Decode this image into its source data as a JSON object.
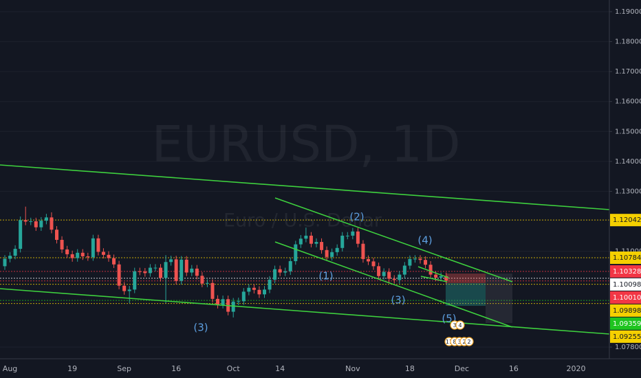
{
  "chart_data": {
    "type": "candlestick",
    "title": "EURUSD, 1D",
    "subtitle": "Euro / U.S. Dollar",
    "categories": [
      null,
      "Aug",
      null,
      null,
      null,
      null,
      null,
      null,
      null,
      null,
      null,
      null,
      null,
      "19",
      null,
      null,
      null,
      null,
      null,
      null,
      null,
      null,
      null,
      "Sep",
      null,
      null,
      null,
      null,
      null,
      null,
      null,
      null,
      null,
      "16",
      null,
      null,
      null,
      null,
      null,
      null,
      null,
      null,
      null,
      null,
      "Oct",
      null,
      null,
      null,
      null,
      null,
      null,
      null,
      null,
      "14",
      null,
      null,
      null,
      null,
      null,
      null,
      null,
      null,
      null,
      null,
      null,
      null,
      null,
      "Nov",
      null,
      null,
      null,
      null,
      null,
      null,
      null,
      null,
      null,
      null,
      "18",
      null,
      null,
      null,
      null,
      null,
      null,
      null,
      null,
      null,
      "Dec",
      null,
      null,
      null,
      null,
      null,
      null,
      null,
      null,
      null,
      "16",
      null,
      null,
      null,
      null,
      null,
      null,
      null,
      null,
      null,
      null,
      null,
      "2020",
      null,
      null,
      null,
      null,
      null,
      null
    ],
    "open": [
      1.105,
      1.1075,
      1.1085,
      1.1108,
      1.1204,
      1.1199,
      1.12,
      1.118,
      1.1202,
      1.1213,
      1.1172,
      1.1138,
      1.1106,
      1.109,
      1.1077,
      1.1095,
      1.1083,
      1.108,
      1.1143,
      1.1098,
      1.1088,
      1.1077,
      1.1056,
      1.0985,
      1.0967,
      1.0972,
      1.1033,
      1.1032,
      1.1027,
      1.1045,
      1.1045,
      1.1011,
      1.1064,
      1.1073,
      1.1001,
      1.1072,
      1.1029,
      1.1042,
      1.1018,
      1.0992,
      1.0994,
      1.0941,
      1.0921,
      1.094,
      1.0898,
      1.0932,
      1.0933,
      1.0965,
      1.0978,
      1.0971,
      1.0956,
      1.0972,
      1.1005,
      1.104,
      1.1029,
      1.1033,
      1.1067,
      1.1123,
      1.1142,
      1.1152,
      1.1125,
      1.1131,
      1.1104,
      1.1081,
      1.1097,
      1.1111,
      1.1152,
      1.1152,
      1.1166,
      1.1125,
      1.1074,
      1.1066,
      1.105,
      1.1017,
      1.1031,
      1.1008,
      1.1004,
      1.1022,
      1.1052,
      1.1074,
      1.1075,
      1.1071,
      1.1055,
      1.1022,
      1.1012,
      1.1017,
      null,
      null,
      null,
      null,
      null,
      null,
      null,
      null,
      null,
      null,
      null,
      null,
      null,
      null,
      null,
      null,
      null,
      null,
      null,
      null,
      null,
      null,
      null,
      null,
      null,
      null,
      null,
      null,
      null,
      null,
      null
    ],
    "high": [
      1.1087,
      1.1097,
      1.112,
      1.1216,
      1.1249,
      1.1212,
      1.1212,
      1.1214,
      1.1225,
      1.123,
      1.1184,
      1.115,
      1.1118,
      1.1102,
      1.1107,
      1.1107,
      1.1095,
      1.1155,
      1.1155,
      1.111,
      1.11,
      1.1089,
      1.1068,
      1.0997,
      1.0984,
      1.1045,
      1.1045,
      1.1044,
      1.1057,
      1.1057,
      1.1057,
      1.1087,
      1.1085,
      1.1085,
      1.1084,
      1.1084,
      1.1054,
      1.1054,
      1.103,
      1.1006,
      1.1006,
      1.0953,
      1.0952,
      1.0952,
      1.0944,
      1.0945,
      1.0977,
      1.099,
      1.099,
      1.0983,
      1.0984,
      1.1017,
      1.1052,
      1.1052,
      1.1045,
      1.1079,
      1.1135,
      1.1154,
      1.1179,
      1.1164,
      1.1143,
      1.1143,
      1.1116,
      1.1109,
      1.1123,
      1.1164,
      1.1164,
      1.1178,
      1.1178,
      1.1137,
      1.1086,
      1.1078,
      1.1062,
      1.1043,
      1.1043,
      1.102,
      1.1034,
      1.1064,
      1.1086,
      1.1087,
      1.1087,
      1.1083,
      1.1067,
      1.1034,
      1.1029,
      1.1029,
      null,
      null,
      null,
      null,
      null,
      null,
      null,
      null,
      null,
      null,
      null,
      null,
      null,
      null,
      null,
      null,
      null,
      null,
      null,
      null,
      null,
      null,
      null,
      null,
      null,
      null,
      null,
      null,
      null,
      null,
      null
    ],
    "low": [
      1.1038,
      1.1063,
      1.1073,
      1.1096,
      1.1187,
      1.1187,
      1.1168,
      1.1168,
      1.119,
      1.116,
      1.1126,
      1.1094,
      1.1078,
      1.1065,
      1.1065,
      1.1071,
      1.1068,
      1.1068,
      1.1086,
      1.1076,
      1.1065,
      1.1044,
      1.0973,
      1.0955,
      1.0927,
      1.096,
      1.102,
      1.1015,
      1.1015,
      1.1033,
      1.0999,
      1.0927,
      1.1052,
      1.0989,
      1.0989,
      1.1017,
      1.1017,
      1.1006,
      1.098,
      1.098,
      1.0929,
      1.0909,
      1.0909,
      1.0886,
      1.0879,
      1.092,
      1.0921,
      1.0953,
      1.0959,
      1.0944,
      1.0944,
      1.096,
      1.0993,
      1.1017,
      1.1017,
      1.1021,
      1.1055,
      1.1111,
      1.113,
      1.1113,
      1.1113,
      1.1092,
      1.1069,
      1.1069,
      1.1085,
      1.1099,
      1.114,
      1.114,
      1.1113,
      1.1062,
      1.1054,
      1.1038,
      1.1005,
      1.1005,
      1.0996,
      1.0992,
      1.0992,
      1.101,
      1.104,
      1.1062,
      1.1059,
      1.1043,
      1.101,
      1.1,
      1.1,
      1.099,
      null,
      null,
      null,
      null,
      null,
      null,
      null,
      null,
      null,
      null,
      null,
      null,
      null,
      null,
      null,
      null,
      null,
      null,
      null,
      null,
      null,
      null,
      null,
      null,
      null,
      null,
      null,
      null,
      null,
      null,
      null
    ],
    "close": [
      1.1075,
      1.1085,
      1.1108,
      1.1204,
      1.1199,
      1.12,
      1.118,
      1.1202,
      1.1213,
      1.1172,
      1.1138,
      1.1106,
      1.109,
      1.1077,
      1.1095,
      1.1083,
      1.108,
      1.1143,
      1.1098,
      1.1088,
      1.1077,
      1.1056,
      1.0985,
      1.0967,
      1.0972,
      1.1033,
      1.1032,
      1.1027,
      1.1045,
      1.1045,
      1.1011,
      1.1064,
      1.1073,
      1.1001,
      1.1072,
      1.1029,
      1.1042,
      1.1018,
      1.0992,
      1.0994,
      1.0941,
      1.0921,
      1.094,
      1.0898,
      1.0932,
      1.0933,
      1.0965,
      1.0978,
      1.0971,
      1.0956,
      1.0972,
      1.1005,
      1.104,
      1.1029,
      1.1033,
      1.1067,
      1.1123,
      1.1142,
      1.1152,
      1.1125,
      1.1131,
      1.1104,
      1.1081,
      1.1097,
      1.1111,
      1.1152,
      1.1152,
      1.1166,
      1.1125,
      1.1074,
      1.1066,
      1.105,
      1.1017,
      1.1031,
      1.1008,
      1.1004,
      1.1022,
      1.1052,
      1.1074,
      1.1075,
      1.1071,
      1.1055,
      1.1022,
      1.1012,
      1.1017,
      1.1002,
      null,
      null,
      null,
      null,
      null,
      null,
      null,
      null,
      null,
      null,
      null,
      null,
      null,
      null,
      null,
      null,
      null,
      null,
      null,
      null,
      null,
      null,
      null,
      null,
      null,
      null,
      null,
      null,
      null,
      null,
      null
    ],
    "up_color": "#26a69a",
    "down_color": "#ef5350",
    "ylim": [
      1.0741,
      1.1939
    ],
    "yticks": [
      {
        "value": 1.19,
        "label": "1.19000"
      },
      {
        "value": 1.18,
        "label": "1.18000"
      },
      {
        "value": 1.17,
        "label": "1.17000"
      },
      {
        "value": 1.16,
        "label": "1.16000"
      },
      {
        "value": 1.15,
        "label": "1.15000"
      },
      {
        "value": 1.14,
        "label": "1.14000"
      },
      {
        "value": 1.13,
        "label": "1.13000"
      },
      {
        "value": 1.11,
        "label": "1.11000"
      },
      {
        "value": 1.078,
        "label": "1.07800"
      }
    ],
    "price_labels": [
      {
        "value": 1.12042,
        "color": "#f5d000"
      },
      {
        "value": 1.10784,
        "color": "#f5d000"
      },
      {
        "value": 1.10328,
        "color": "#f23645"
      },
      {
        "value": 1.10098,
        "color": "#ffffff"
      },
      {
        "value": 1.1001,
        "label": "1.10010",
        "color": "#f23645"
      },
      {
        "value": 1.09898,
        "color": "#f5d000"
      },
      {
        "value": 1.09359,
        "color": "#1fc41f"
      },
      {
        "value": 1.09255,
        "color": "#f5d000"
      }
    ],
    "annotations": [
      "(3)",
      "(1)",
      "(2)",
      "(3)",
      "(4)",
      "(5)"
    ],
    "events": [
      "3",
      "4",
      "11",
      "8",
      "3",
      "2",
      "2"
    ],
    "grid": true
  }
}
